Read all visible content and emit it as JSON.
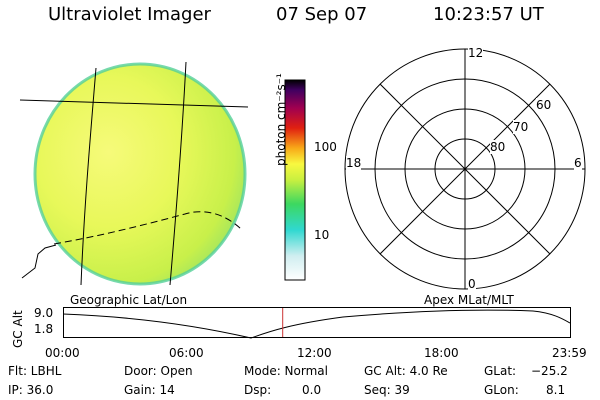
{
  "header": {
    "instrument": "Ultraviolet Imager",
    "date": "07 Sep 07",
    "time": "10:23:57 UT"
  },
  "colorbar": {
    "unit_label": "photon cm⁻²s⁻¹",
    "tick_labels": [
      "100",
      "10"
    ]
  },
  "polar_plot": {
    "mlt_labels": [
      "12",
      "18",
      "6",
      "0"
    ],
    "lat_labels": [
      "60",
      "70",
      "80"
    ]
  },
  "image_panel": {
    "caption": "Geographic Lat/Lon"
  },
  "polar_caption": "Apex MLat/MLT",
  "altitude_plot": {
    "axis_label": "GC Alt",
    "y_ticks": [
      "9.0",
      "1.8"
    ],
    "x_ticks": [
      "00:00",
      "06:00",
      "12:00",
      "18:00",
      "23:59"
    ],
    "current_time_hours": 10.4
  },
  "status": {
    "flt": "Flt: LBHL",
    "ip": "IP: 36.0",
    "door": "Door: Open",
    "gain": "Gain: 14",
    "mode": "Mode: Normal",
    "dsp_label": "Dsp:",
    "dsp_value": "0.0",
    "gc_alt": "GC Alt: 4.0 Re",
    "seq": "Seq: 39",
    "glat_label": "GLat:",
    "glat_value": "−25.2",
    "glon_label": "GLon:",
    "glon_value": "8.1"
  },
  "colors": {
    "polar_lines": "#000000",
    "marker": "#cc3333"
  }
}
